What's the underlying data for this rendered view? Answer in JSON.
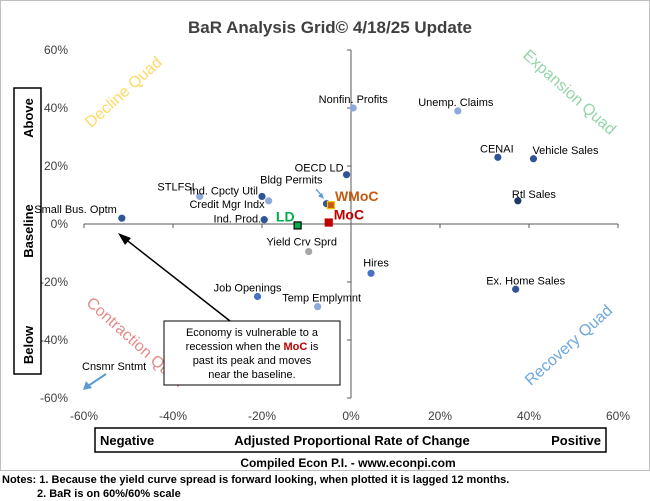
{
  "chart_data": {
    "type": "scatter",
    "title": "BaR Analysis Grid© 4/18/25 Update",
    "xlim": [
      -60,
      60
    ],
    "ylim": [
      -60,
      60
    ],
    "x_ticks": [
      "-60%",
      "-40%",
      "-20%",
      "0%",
      "20%",
      "40%",
      "60%"
    ],
    "y_ticks": [
      "60%",
      "40%",
      "20%",
      "0%",
      "-20%",
      "-40%",
      "-60%"
    ],
    "grid": false,
    "quadrants": {
      "decline": "Decline Quad",
      "expansion": "Expansion Quad",
      "contraction": "Contraction Quad",
      "recovery": "Recovery Quad"
    },
    "y_axis_box": {
      "above": "Above",
      "baseline": "Baseline",
      "below": "Below"
    },
    "x_axis_box": {
      "negative": "Negative",
      "label": "Adjusted Proportional Rate of Change",
      "positive": "Positive"
    },
    "points": [
      {
        "label": "Nonfin. Profits",
        "x": 0.5,
        "y": 40,
        "color": "#8eaadb"
      },
      {
        "label": "Unemp. Claims",
        "x": 24,
        "y": 39,
        "color": "#8eaadb"
      },
      {
        "label": "CENAI",
        "x": 33,
        "y": 23,
        "color": "#2f5597"
      },
      {
        "label": "Vehicle Sales",
        "x": 41,
        "y": 22.5,
        "color": "#2f5597"
      },
      {
        "label": "OECD LD",
        "x": -1,
        "y": 17,
        "color": "#2f5597"
      },
      {
        "label": "Rtl Sales",
        "x": 37.5,
        "y": 8,
        "color": "#1f3864"
      },
      {
        "label": "Bldg Permits",
        "x": -5.5,
        "y": 7,
        "color": "#2f5597"
      },
      {
        "label": "STLFSI",
        "x": -34,
        "y": 9.5,
        "color": "#8eaadb"
      },
      {
        "label": "Ind. Cpcty Util",
        "x": -20,
        "y": 9.5,
        "color": "#2f5597"
      },
      {
        "label": "Credit Mgr Indx",
        "x": -18.5,
        "y": 8,
        "color": "#8eaadb"
      },
      {
        "label": "Small Bus. Optm",
        "x": -51.5,
        "y": 2,
        "color": "#2f5597"
      },
      {
        "label": "Ind. Prod.",
        "x": -19.5,
        "y": 1.5,
        "color": "#2f5597"
      },
      {
        "label": "Yield Crv Sprd",
        "x": -9.5,
        "y": -9.5,
        "color": "#a6a6a6"
      },
      {
        "label": "Hires",
        "x": 4.5,
        "y": -17,
        "color": "#4472c4"
      },
      {
        "label": "Ex. Home Sales",
        "x": 37,
        "y": -22.5,
        "color": "#2f5597"
      },
      {
        "label": "Job Openings",
        "x": -21,
        "y": -25,
        "color": "#4472c4"
      },
      {
        "label": "Temp Emplymnt",
        "x": -7.5,
        "y": -28.5,
        "color": "#8eaadb"
      }
    ],
    "markers": [
      {
        "label": "WMoC",
        "x": -4.5,
        "y": 6.5,
        "color": "#c55a11"
      },
      {
        "label": "MoC",
        "x": -5,
        "y": 0.5,
        "color": "#c00000"
      },
      {
        "label": "LD",
        "x": -12,
        "y": -0.5,
        "color": "#00b050"
      }
    ],
    "offscale_label": "Cnsmr Sntmt",
    "callout_text": [
      "Economy is vulnerable to a",
      "recession when the ",
      "MoC",
      " is",
      "past its peak and moves",
      "near the baseline."
    ],
    "source": "Compiled Econ P.I. - www.econpi.com",
    "notes": [
      "Notes: 1. Because the yield curve spread is forward looking, when plotted it is lagged 12 months.",
      "2. BaR is on 60%/60% scale"
    ],
    "colors": {
      "decline": "#ffd966",
      "expansion": "#92d5a8",
      "contraction": "#e58a8a",
      "recovery": "#6fa8dc",
      "arrow_blue": "#5b9bd5",
      "moc_red": "#c00000"
    }
  }
}
